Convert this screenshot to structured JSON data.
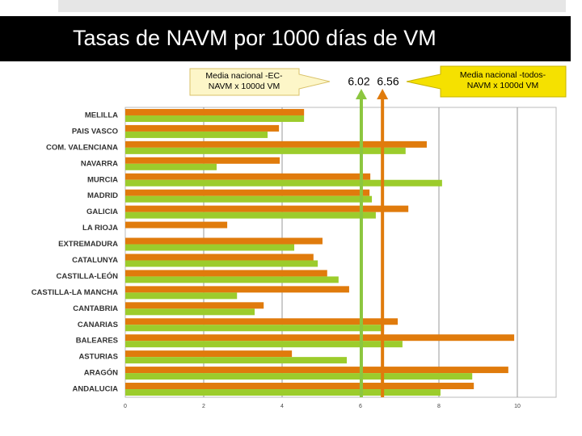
{
  "chart_data": {
    "type": "hbar",
    "title": "Tasas de NAVM por 1000 días de VM",
    "categories": [
      "MELILLA",
      "PAIS VASCO",
      "COM. VALENCIANA",
      "NAVARRA",
      "MURCIA",
      "MADRID",
      "GALICIA",
      "LA RIOJA",
      "EXTREMADURA",
      "CATALUNYA",
      "CASTILLA-LEÓN",
      "CASTILLA-LA MANCHA",
      "CANTABRIA",
      "CANARIAS",
      "BALEARES",
      "ASTURIAS",
      "ARAGÓN",
      "ANDALUCIA"
    ],
    "series": [
      {
        "color": "#e07b0c",
        "values": [
          4.56,
          3.92,
          7.69,
          3.94,
          6.25,
          6.23,
          7.22,
          2.6,
          5.03,
          4.8,
          5.15,
          5.71,
          3.53,
          6.95,
          9.92,
          4.25,
          9.77,
          8.89
        ]
      },
      {
        "color": "#9ccc2c",
        "values": [
          4.56,
          3.63,
          7.15,
          2.33,
          8.08,
          6.29,
          6.39,
          0,
          4.31,
          4.91,
          5.44,
          2.85,
          3.3,
          6.6,
          7.07,
          5.65,
          8.85,
          8.04
        ]
      }
    ],
    "xlim": [
      0,
      11
    ],
    "xticks": [
      0,
      2,
      4,
      6,
      8,
      10
    ],
    "grid": true,
    "reference_lines": [
      {
        "value": 6.02,
        "color": "#8cc63f"
      },
      {
        "value": 6.56,
        "color": "#e07b0c"
      }
    ],
    "annotations": [
      [
        "Media nacional -EC-",
        "NAVM  x 1000d VM"
      ],
      [
        "Media nacional -todos-",
        "NAVM  x 1000d VM"
      ]
    ]
  }
}
